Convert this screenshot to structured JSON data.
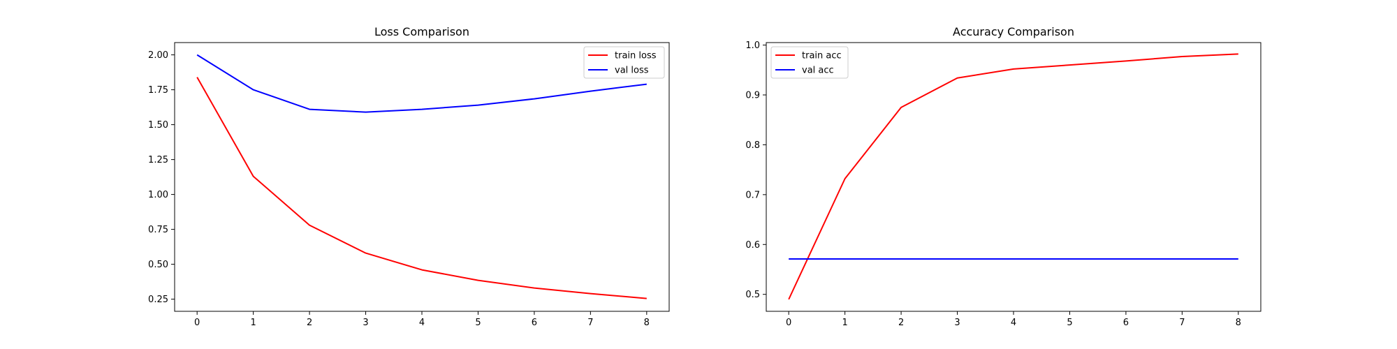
{
  "chart_data": [
    {
      "type": "line",
      "title": "Loss Comparison",
      "xlabel": "",
      "ylabel": "",
      "x": [
        0,
        1,
        2,
        3,
        4,
        5,
        6,
        7,
        8
      ],
      "xticks": [
        "0",
        "1",
        "2",
        "3",
        "4",
        "5",
        "6",
        "7",
        "8"
      ],
      "yticks": [
        "0.25",
        "0.50",
        "0.75",
        "1.00",
        "1.25",
        "1.50",
        "1.75",
        "2.00"
      ],
      "xlim": [
        -0.4,
        8.4
      ],
      "ylim": [
        0.163,
        2.088
      ],
      "grid": false,
      "legend_position": "top-right",
      "series": [
        {
          "name": "train loss",
          "color": "#ff0000",
          "values": [
            1.84,
            1.13,
            0.78,
            0.58,
            0.46,
            0.385,
            0.33,
            0.29,
            0.255
          ]
        },
        {
          "name": "val loss",
          "color": "#0000ff",
          "values": [
            2.0,
            1.75,
            1.61,
            1.59,
            1.61,
            1.64,
            1.685,
            1.74,
            1.79
          ]
        }
      ]
    },
    {
      "type": "line",
      "title": "Accuracy Comparison",
      "xlabel": "",
      "ylabel": "",
      "x": [
        0,
        1,
        2,
        3,
        4,
        5,
        6,
        7,
        8
      ],
      "xticks": [
        "0",
        "1",
        "2",
        "3",
        "4",
        "5",
        "6",
        "7",
        "8"
      ],
      "yticks": [
        "0.5",
        "0.6",
        "0.7",
        "0.8",
        "0.9",
        "1.0"
      ],
      "xlim": [
        -0.4,
        8.4
      ],
      "ylim": [
        0.466,
        1.005
      ],
      "grid": false,
      "legend_position": "top-left",
      "series": [
        {
          "name": "train acc",
          "color": "#ff0000",
          "values": [
            0.49,
            0.732,
            0.875,
            0.934,
            0.952,
            0.96,
            0.968,
            0.977,
            0.982
          ]
        },
        {
          "name": "val acc",
          "color": "#0000ff",
          "values": [
            0.571,
            0.571,
            0.571,
            0.571,
            0.571,
            0.571,
            0.571,
            0.571,
            0.571
          ]
        }
      ]
    }
  ]
}
